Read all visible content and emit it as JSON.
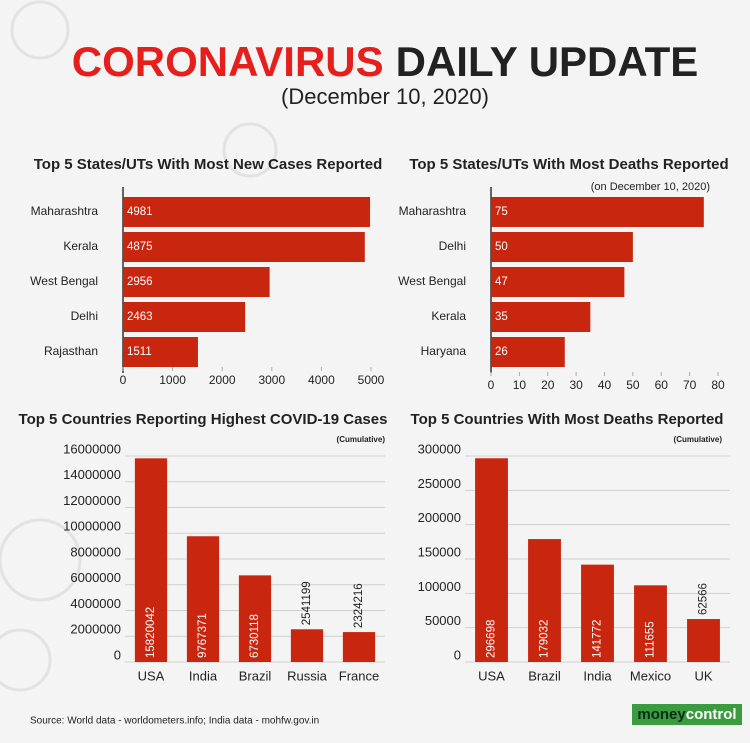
{
  "header": {
    "title_red": "CORONAVIRUS",
    "title_black": "DAILY UPDATE",
    "date": "(December 10, 2020)"
  },
  "footer": {
    "source": "Source: World data - worldometers.info; India data - mohfw.gov.in",
    "logo_money": "money",
    "logo_control": "control"
  },
  "chart_data": [
    {
      "type": "barh",
      "title": "Top 5 States/UTs With Most New Cases Reported",
      "categories": [
        "Maharashtra",
        "Kerala",
        "West Bengal",
        "Delhi",
        "Rajasthan"
      ],
      "values": [
        4981,
        4875,
        2956,
        2463,
        1511
      ],
      "color": "#c8260f",
      "xlim": [
        0,
        5000
      ],
      "xticks": [
        0,
        1000,
        2000,
        3000,
        4000,
        5000
      ]
    },
    {
      "type": "barh",
      "title": "Top 5 States/UTs With Most Deaths Reported",
      "subtitle": "(on December 10, 2020)",
      "categories": [
        "Maharashtra",
        "Delhi",
        "West Bengal",
        "Kerala",
        "Haryana"
      ],
      "values": [
        75,
        50,
        47,
        35,
        26
      ],
      "color": "#c8260f",
      "xlim": [
        0,
        80
      ],
      "xticks": [
        0,
        10,
        20,
        30,
        40,
        50,
        60,
        70,
        80
      ]
    },
    {
      "type": "bar",
      "title": "Top 5 Countries Reporting Highest COVID-19 Cases",
      "subtitle": "(Cumulative)",
      "categories": [
        "USA",
        "India",
        "Brazil",
        "Russia",
        "France"
      ],
      "values": [
        15820042,
        9767371,
        6730118,
        2541199,
        2324216
      ],
      "color": "#c8260f",
      "ylim": [
        0,
        16000000
      ],
      "yticks": [
        0,
        2000000,
        4000000,
        6000000,
        8000000,
        10000000,
        12000000,
        14000000,
        16000000
      ],
      "grid": true
    },
    {
      "type": "bar",
      "title": "Top 5 Countries With Most Deaths Reported",
      "subtitle": "(Cumulative)",
      "categories": [
        "USA",
        "Brazil",
        "India",
        "Mexico",
        "UK"
      ],
      "values": [
        296698,
        179032,
        141772,
        111655,
        62566
      ],
      "color": "#c8260f",
      "ylim": [
        0,
        300000
      ],
      "yticks": [
        0,
        50000,
        100000,
        150000,
        200000,
        250000,
        300000
      ],
      "grid": true
    }
  ]
}
